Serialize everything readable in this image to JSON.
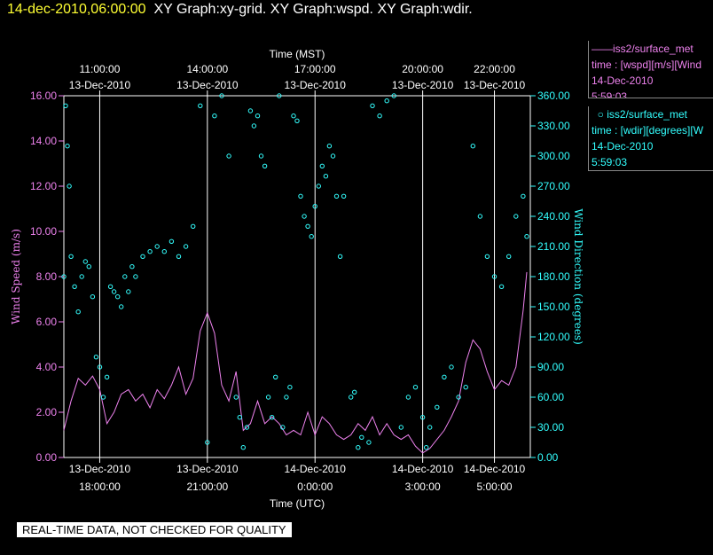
{
  "title": {
    "timestamp": "14-dec-2010,06:00:00",
    "graphs": "XY Graph:xy-grid.  XY Graph:wspd.  XY Graph:wdir."
  },
  "legend": [
    {
      "name": "iss2/surface_met",
      "var": "time : [wspd][m/s][Wind",
      "date": "14-Dec-2010",
      "time": "5:59:03",
      "color": "#ee82ee",
      "symbol": "line"
    },
    {
      "name": "iss2/surface_met",
      "var": "time : [wdir][degrees][W",
      "date": "14-Dec-2010",
      "time": "5:59:03",
      "color": "#33ffff",
      "symbol": "circle"
    }
  ],
  "disclaimer": "REAL-TIME DATA, NOT CHECKED FOR QUALITY",
  "chart_data": {
    "type": "line",
    "top_axis_label": "Time (MST)",
    "top_ticks": [
      {
        "t": "11:00:00",
        "d": "13-Dec-2010"
      },
      {
        "t": "14:00:00",
        "d": "13-Dec-2010"
      },
      {
        "t": "17:00:00",
        "d": "13-Dec-2010"
      },
      {
        "t": "20:00:00",
        "d": "13-Dec-2010"
      },
      {
        "t": "22:00:00",
        "d": "13-Dec-2010"
      }
    ],
    "bottom_axis_label": "Time (UTC)",
    "bottom_ticks": [
      {
        "d": "13-Dec-2010",
        "t": "18:00:00"
      },
      {
        "d": "13-Dec-2010",
        "t": "21:00:00"
      },
      {
        "d": "14-Dec-2010",
        "t": "0:00:00"
      },
      {
        "d": "14-Dec-2010",
        "t": "3:00:00"
      },
      {
        "d": "14-Dec-2010",
        "t": "5:00:00"
      }
    ],
    "tick_hours_utc": [
      18,
      21,
      24,
      27,
      29
    ],
    "x_range_hours_utc": [
      17.0,
      30.0
    ],
    "ylabel_left": "Wind Speed (m/s)",
    "ylim_left": [
      0,
      16
    ],
    "yticks_left": [
      "0.00",
      "2.00",
      "4.00",
      "6.00",
      "8.00",
      "10.00",
      "12.00",
      "14.00",
      "16.00"
    ],
    "ylabel_right": "Wind Direction (degrees)",
    "ylim_right": [
      0,
      360
    ],
    "yticks_right": [
      "0.00",
      "30.00",
      "60.00",
      "90.00",
      "120.00",
      "150.00",
      "180.00",
      "210.00",
      "240.00",
      "270.00",
      "300.00",
      "330.00",
      "360.00"
    ],
    "grid": "vertical",
    "series": [
      {
        "name": "iss2/surface_met time : [wspd][m/s][Wind",
        "axis": "left",
        "color": "#ee82ee",
        "style": "line",
        "x": [
          17.0,
          17.2,
          17.4,
          17.6,
          17.8,
          18.0,
          18.2,
          18.4,
          18.6,
          18.8,
          19.0,
          19.2,
          19.4,
          19.6,
          19.8,
          20.0,
          20.2,
          20.4,
          20.6,
          20.8,
          21.0,
          21.2,
          21.4,
          21.6,
          21.8,
          22.0,
          22.2,
          22.4,
          22.6,
          22.8,
          23.0,
          23.2,
          23.4,
          23.6,
          23.8,
          24.0,
          24.2,
          24.4,
          24.6,
          24.8,
          25.0,
          25.2,
          25.4,
          25.6,
          25.8,
          26.0,
          26.2,
          26.4,
          26.6,
          26.8,
          27.0,
          27.2,
          27.4,
          27.6,
          27.8,
          28.0,
          28.2,
          28.4,
          28.6,
          28.8,
          29.0,
          29.2,
          29.4,
          29.6,
          29.8,
          29.9
        ],
        "values": [
          1.2,
          2.5,
          3.5,
          3.2,
          3.6,
          3.0,
          1.5,
          2.0,
          2.8,
          3.0,
          2.5,
          2.8,
          2.2,
          3.0,
          2.6,
          3.2,
          4.0,
          2.8,
          3.5,
          5.6,
          6.4,
          5.5,
          3.2,
          2.5,
          3.8,
          1.2,
          1.5,
          2.5,
          1.5,
          1.8,
          1.5,
          1.0,
          1.2,
          1.0,
          2.0,
          1.0,
          1.8,
          1.5,
          1.0,
          0.8,
          1.0,
          1.5,
          1.2,
          1.8,
          1.0,
          1.5,
          1.0,
          0.8,
          1.0,
          0.5,
          0.2,
          0.4,
          0.8,
          1.2,
          1.8,
          2.5,
          4.2,
          5.2,
          4.8,
          3.8,
          3.0,
          3.4,
          3.2,
          4.0,
          6.5,
          8.2
        ]
      },
      {
        "name": "iss2/surface_met time : [wdir][degrees][W",
        "axis": "right",
        "color": "#33ffff",
        "style": "scatter",
        "x": [
          17.0,
          17.05,
          17.1,
          17.15,
          17.2,
          17.3,
          17.4,
          17.5,
          17.6,
          17.7,
          17.8,
          17.9,
          18.0,
          18.1,
          18.2,
          18.3,
          18.4,
          18.5,
          18.6,
          18.7,
          18.8,
          18.9,
          19.0,
          19.2,
          19.4,
          19.6,
          19.8,
          20.0,
          20.2,
          20.4,
          20.6,
          20.8,
          21.0,
          21.2,
          21.4,
          21.6,
          21.8,
          21.9,
          22.0,
          22.1,
          22.2,
          22.3,
          22.4,
          22.5,
          22.6,
          22.7,
          22.8,
          22.9,
          23.0,
          23.1,
          23.2,
          23.3,
          23.4,
          23.5,
          23.6,
          23.7,
          23.8,
          23.9,
          24.0,
          24.1,
          24.2,
          24.3,
          24.4,
          24.5,
          24.6,
          24.7,
          24.8,
          25.0,
          25.1,
          25.2,
          25.3,
          25.5,
          25.6,
          25.8,
          26.0,
          26.2,
          26.4,
          26.6,
          26.8,
          27.0,
          27.1,
          27.2,
          27.4,
          27.6,
          27.8,
          28.0,
          28.2,
          28.4,
          28.6,
          28.8,
          29.0,
          29.2,
          29.4,
          29.6,
          29.8,
          29.9
        ],
        "values": [
          180,
          350,
          310,
          270,
          200,
          170,
          145,
          180,
          195,
          190,
          160,
          100,
          90,
          60,
          80,
          170,
          165,
          160,
          150,
          180,
          165,
          190,
          180,
          200,
          205,
          210,
          205,
          215,
          200,
          210,
          230,
          350,
          15,
          340,
          360,
          300,
          60,
          40,
          10,
          30,
          345,
          330,
          340,
          300,
          290,
          60,
          40,
          80,
          360,
          30,
          60,
          70,
          340,
          335,
          260,
          240,
          230,
          220,
          250,
          270,
          290,
          280,
          310,
          300,
          260,
          200,
          260,
          60,
          65,
          10,
          20,
          15,
          350,
          340,
          355,
          360,
          30,
          60,
          70,
          40,
          10,
          30,
          50,
          80,
          90,
          60,
          70,
          310,
          240,
          200,
          180,
          170,
          200,
          240,
          260,
          220
        ]
      }
    ]
  }
}
